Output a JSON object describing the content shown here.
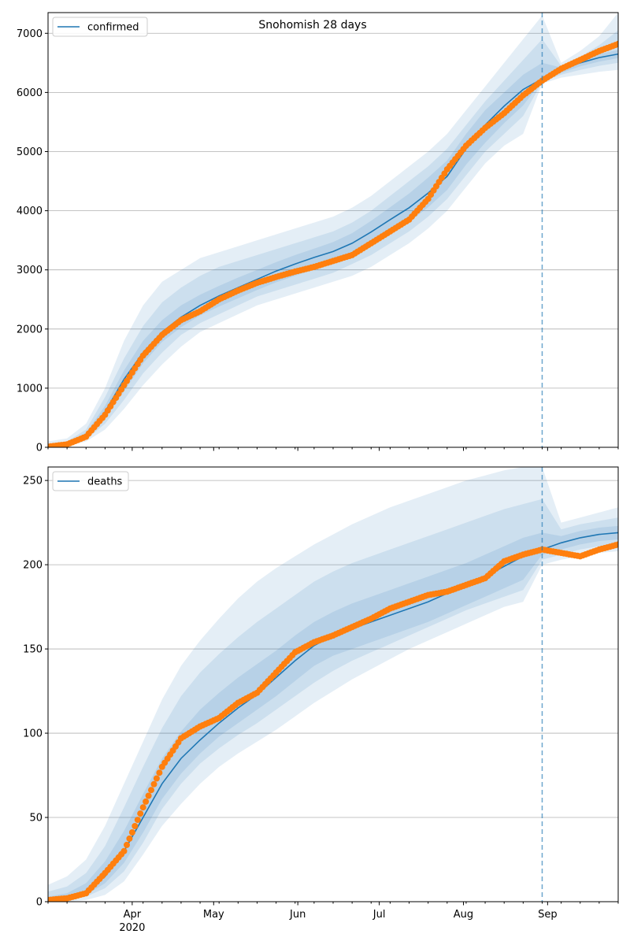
{
  "figure": {
    "title": "Snohomish 28 days"
  },
  "style": {
    "model_color": "#1f77b4",
    "observed_color": "#ff7f0e",
    "band_color": "#1f77b4",
    "grid_color": "#b0b0b0"
  },
  "chart_data": [
    {
      "type": "line",
      "legend": [
        "confirmed"
      ],
      "legend_position": "top-left",
      "grid": "horizontal",
      "ylim": [
        0,
        7350
      ],
      "yticks": [
        0,
        1000,
        2000,
        3000,
        4000,
        5000,
        6000,
        7000
      ],
      "xlim": [
        "2020-03-01",
        "2020-09-27"
      ],
      "xticks": [
        {
          "date": "2020-04-01",
          "label": "Apr",
          "sublabel": "2020"
        },
        {
          "date": "2020-05-01",
          "label": "May",
          "sublabel": ""
        },
        {
          "date": "2020-06-01",
          "label": "Jun",
          "sublabel": ""
        },
        {
          "date": "2020-07-01",
          "label": "Jul",
          "sublabel": ""
        },
        {
          "date": "2020-08-01",
          "label": "Aug",
          "sublabel": ""
        },
        {
          "date": "2020-09-01",
          "label": "Sep",
          "sublabel": ""
        }
      ],
      "forecast_start": "2020-08-30",
      "series": [
        {
          "name": "confirmed",
          "kind": "model",
          "points": [
            [
              "2020-03-01",
              0
            ],
            [
              "2020-03-08",
              40
            ],
            [
              "2020-03-15",
              200
            ],
            [
              "2020-03-22",
              600
            ],
            [
              "2020-03-29",
              1150
            ],
            [
              "2020-04-05",
              1600
            ],
            [
              "2020-04-12",
              1950
            ],
            [
              "2020-04-19",
              2200
            ],
            [
              "2020-04-26",
              2400
            ],
            [
              "2020-05-03",
              2560
            ],
            [
              "2020-05-10",
              2700
            ],
            [
              "2020-05-17",
              2840
            ],
            [
              "2020-05-24",
              2980
            ],
            [
              "2020-05-31",
              3100
            ],
            [
              "2020-06-07",
              3210
            ],
            [
              "2020-06-14",
              3310
            ],
            [
              "2020-06-21",
              3450
            ],
            [
              "2020-06-28",
              3640
            ],
            [
              "2020-07-05",
              3850
            ],
            [
              "2020-07-12",
              4050
            ],
            [
              "2020-07-19",
              4300
            ],
            [
              "2020-07-26",
              4580
            ],
            [
              "2020-08-02",
              5050
            ],
            [
              "2020-08-09",
              5450
            ],
            [
              "2020-08-16",
              5770
            ],
            [
              "2020-08-23",
              6050
            ],
            [
              "2020-08-30",
              6230
            ],
            [
              "2020-09-06",
              6380
            ],
            [
              "2020-09-13",
              6500
            ],
            [
              "2020-09-20",
              6590
            ],
            [
              "2020-09-27",
              6650
            ]
          ]
        },
        {
          "name": "confirmed (observed)",
          "kind": "observed",
          "points": [
            [
              "2020-03-01",
              10
            ],
            [
              "2020-03-08",
              50
            ],
            [
              "2020-03-15",
              180
            ],
            [
              "2020-03-22",
              550
            ],
            [
              "2020-03-29",
              1050
            ],
            [
              "2020-04-05",
              1550
            ],
            [
              "2020-04-12",
              1900
            ],
            [
              "2020-04-19",
              2150
            ],
            [
              "2020-04-26",
              2300
            ],
            [
              "2020-05-03",
              2500
            ],
            [
              "2020-05-10",
              2650
            ],
            [
              "2020-05-17",
              2780
            ],
            [
              "2020-05-24",
              2880
            ],
            [
              "2020-05-31",
              2970
            ],
            [
              "2020-06-07",
              3050
            ],
            [
              "2020-06-14",
              3150
            ],
            [
              "2020-06-21",
              3250
            ],
            [
              "2020-06-28",
              3450
            ],
            [
              "2020-07-05",
              3650
            ],
            [
              "2020-07-12",
              3850
            ],
            [
              "2020-07-19",
              4200
            ],
            [
              "2020-07-26",
              4700
            ],
            [
              "2020-08-02",
              5100
            ],
            [
              "2020-08-09",
              5400
            ],
            [
              "2020-08-16",
              5650
            ],
            [
              "2020-08-23",
              5950
            ],
            [
              "2020-08-30",
              6200
            ],
            [
              "2020-09-06",
              6400
            ],
            [
              "2020-09-13",
              6550
            ],
            [
              "2020-09-20",
              6700
            ],
            [
              "2020-09-27",
              6820
            ]
          ]
        }
      ],
      "bands": [
        {
          "level": "outer",
          "lower": [
            0,
            15,
            100,
            300,
            650,
            1050,
            1400,
            1700,
            1950,
            2100,
            2250,
            2400,
            2500,
            2600,
            2700,
            2800,
            2900,
            3050,
            3250,
            3450,
            3700,
            4000,
            4400,
            4800,
            5100,
            5300,
            6150,
            6250,
            6300,
            6350,
            6380
          ],
          "upper": [
            100,
            150,
            400,
            1000,
            1800,
            2400,
            2800,
            3000,
            3200,
            3300,
            3400,
            3500,
            3600,
            3700,
            3800,
            3900,
            4050,
            4250,
            4500,
            4750,
            5000,
            5300,
            5700,
            6100,
            6500,
            6900,
            7300,
            6500,
            6700,
            6950,
            7350
          ]
        },
        {
          "level": "middle",
          "lower": [
            0,
            20,
            130,
            400,
            800,
            1250,
            1600,
            1900,
            2100,
            2250,
            2400,
            2550,
            2650,
            2750,
            2850,
            2950,
            3100,
            3250,
            3450,
            3650,
            3900,
            4200,
            4600,
            5000,
            5300,
            5600,
            6180,
            6300,
            6380,
            6450,
            6500
          ],
          "upper": [
            60,
            100,
            300,
            850,
            1500,
            2050,
            2450,
            2700,
            2900,
            3050,
            3150,
            3250,
            3350,
            3450,
            3550,
            3650,
            3800,
            4000,
            4250,
            4500,
            4750,
            5050,
            5450,
            5850,
            6200,
            6550,
            6900,
            6450,
            6600,
            6800,
            7050
          ]
        },
        {
          "level": "inner",
          "lower": [
            0,
            30,
            160,
            500,
            950,
            1420,
            1780,
            2030,
            2230,
            2380,
            2520,
            2660,
            2790,
            2900,
            3010,
            3110,
            3250,
            3420,
            3610,
            3810,
            4060,
            4350,
            4780,
            5150,
            5480,
            5780,
            6200,
            6330,
            6440,
            6520,
            6580
          ],
          "upper": [
            40,
            70,
            250,
            700,
            1300,
            1800,
            2150,
            2400,
            2580,
            2730,
            2870,
            3000,
            3130,
            3250,
            3360,
            3470,
            3620,
            3830,
            4060,
            4290,
            4560,
            4850,
            5300,
            5700,
            6000,
            6300,
            6500,
            6420,
            6550,
            6650,
            6720
          ]
        }
      ]
    },
    {
      "type": "line",
      "legend": [
        "deaths"
      ],
      "legend_position": "top-left",
      "grid": "horizontal",
      "ylim": [
        0,
        258
      ],
      "yticks": [
        0,
        50,
        100,
        150,
        200,
        250
      ],
      "xlim": [
        "2020-03-01",
        "2020-09-27"
      ],
      "xticks": [
        {
          "date": "2020-04-01",
          "label": "Apr",
          "sublabel": "2020"
        },
        {
          "date": "2020-05-01",
          "label": "May",
          "sublabel": ""
        },
        {
          "date": "2020-06-01",
          "label": "Jun",
          "sublabel": ""
        },
        {
          "date": "2020-07-01",
          "label": "Jul",
          "sublabel": ""
        },
        {
          "date": "2020-08-01",
          "label": "Aug",
          "sublabel": ""
        },
        {
          "date": "2020-09-01",
          "label": "Sep",
          "sublabel": ""
        }
      ],
      "forecast_start": "2020-08-30",
      "series": [
        {
          "name": "deaths",
          "kind": "model",
          "points": [
            [
              "2020-03-01",
              0
            ],
            [
              "2020-03-08",
              2
            ],
            [
              "2020-03-15",
              6
            ],
            [
              "2020-03-22",
              15
            ],
            [
              "2020-03-29",
              30
            ],
            [
              "2020-04-05",
              50
            ],
            [
              "2020-04-12",
              70
            ],
            [
              "2020-04-19",
              85
            ],
            [
              "2020-04-26",
              96
            ],
            [
              "2020-05-03",
              106
            ],
            [
              "2020-05-10",
              115
            ],
            [
              "2020-05-17",
              123
            ],
            [
              "2020-05-24",
              133
            ],
            [
              "2020-05-31",
              143
            ],
            [
              "2020-06-07",
              152
            ],
            [
              "2020-06-14",
              158
            ],
            [
              "2020-06-21",
              162
            ],
            [
              "2020-06-28",
              166
            ],
            [
              "2020-07-05",
              170
            ],
            [
              "2020-07-12",
              174
            ],
            [
              "2020-07-19",
              178
            ],
            [
              "2020-07-26",
              183
            ],
            [
              "2020-08-02",
              188
            ],
            [
              "2020-08-09",
              193
            ],
            [
              "2020-08-16",
              199
            ],
            [
              "2020-08-23",
              205
            ],
            [
              "2020-08-30",
              209
            ],
            [
              "2020-09-06",
              213
            ],
            [
              "2020-09-13",
              216
            ],
            [
              "2020-09-20",
              218
            ],
            [
              "2020-09-27",
              219
            ]
          ]
        },
        {
          "name": "deaths (observed)",
          "kind": "observed",
          "points": [
            [
              "2020-03-01",
              1
            ],
            [
              "2020-03-08",
              2
            ],
            [
              "2020-03-15",
              5
            ],
            [
              "2020-03-22",
              17
            ],
            [
              "2020-03-29",
              30
            ],
            [
              "2020-04-05",
              56
            ],
            [
              "2020-04-12",
              80
            ],
            [
              "2020-04-19",
              97
            ],
            [
              "2020-04-26",
              104
            ],
            [
              "2020-05-03",
              109
            ],
            [
              "2020-05-10",
              118
            ],
            [
              "2020-05-17",
              124
            ],
            [
              "2020-05-24",
              136
            ],
            [
              "2020-05-31",
              148
            ],
            [
              "2020-06-07",
              154
            ],
            [
              "2020-06-14",
              158
            ],
            [
              "2020-06-21",
              163
            ],
            [
              "2020-06-28",
              168
            ],
            [
              "2020-07-05",
              174
            ],
            [
              "2020-07-12",
              178
            ],
            [
              "2020-07-19",
              182
            ],
            [
              "2020-07-26",
              184
            ],
            [
              "2020-08-02",
              188
            ],
            [
              "2020-08-09",
              192
            ],
            [
              "2020-08-16",
              202
            ],
            [
              "2020-08-23",
              206
            ],
            [
              "2020-08-30",
              209
            ],
            [
              "2020-09-06",
              207
            ],
            [
              "2020-09-13",
              205
            ],
            [
              "2020-09-20",
              209
            ],
            [
              "2020-09-27",
              212
            ]
          ]
        }
      ],
      "bands": [
        {
          "level": "outer",
          "lower": [
            0,
            0,
            1,
            4,
            12,
            28,
            45,
            58,
            70,
            80,
            88,
            95,
            102,
            110,
            118,
            125,
            132,
            138,
            144,
            150,
            155,
            160,
            165,
            170,
            175,
            178,
            200,
            203,
            205,
            207,
            208
          ],
          "upper": [
            10,
            15,
            25,
            45,
            70,
            95,
            120,
            140,
            155,
            168,
            180,
            190,
            198,
            205,
            212,
            218,
            224,
            229,
            234,
            238,
            242,
            246,
            250,
            253,
            256,
            258,
            258,
            225,
            228,
            231,
            234
          ]
        },
        {
          "level": "middle",
          "lower": [
            0,
            1,
            3,
            8,
            18,
            35,
            55,
            70,
            82,
            91,
            99,
            106,
            114,
            122,
            130,
            137,
            143,
            148,
            153,
            158,
            163,
            168,
            173,
            177,
            181,
            185,
            203,
            206,
            209,
            211,
            212
          ],
          "upper": [
            6,
            9,
            17,
            33,
            56,
            80,
            103,
            122,
            136,
            147,
            157,
            166,
            174,
            182,
            190,
            196,
            201,
            205,
            209,
            213,
            217,
            221,
            225,
            229,
            233,
            236,
            239,
            221,
            224,
            226,
            228
          ]
        },
        {
          "level": "inner",
          "lower": [
            0,
            1,
            4,
            11,
            23,
            41,
            61,
            76,
            88,
            98,
            106,
            114,
            122,
            131,
            140,
            146,
            150,
            154,
            158,
            162,
            166,
            171,
            176,
            181,
            186,
            191,
            206,
            209,
            212,
            214,
            215
          ],
          "upper": [
            3,
            5,
            11,
            24,
            42,
            64,
            85,
            101,
            114,
            124,
            133,
            141,
            149,
            158,
            166,
            172,
            177,
            181,
            185,
            189,
            193,
            197,
            201,
            206,
            211,
            216,
            219,
            217,
            220,
            222,
            223
          ]
        }
      ]
    }
  ]
}
